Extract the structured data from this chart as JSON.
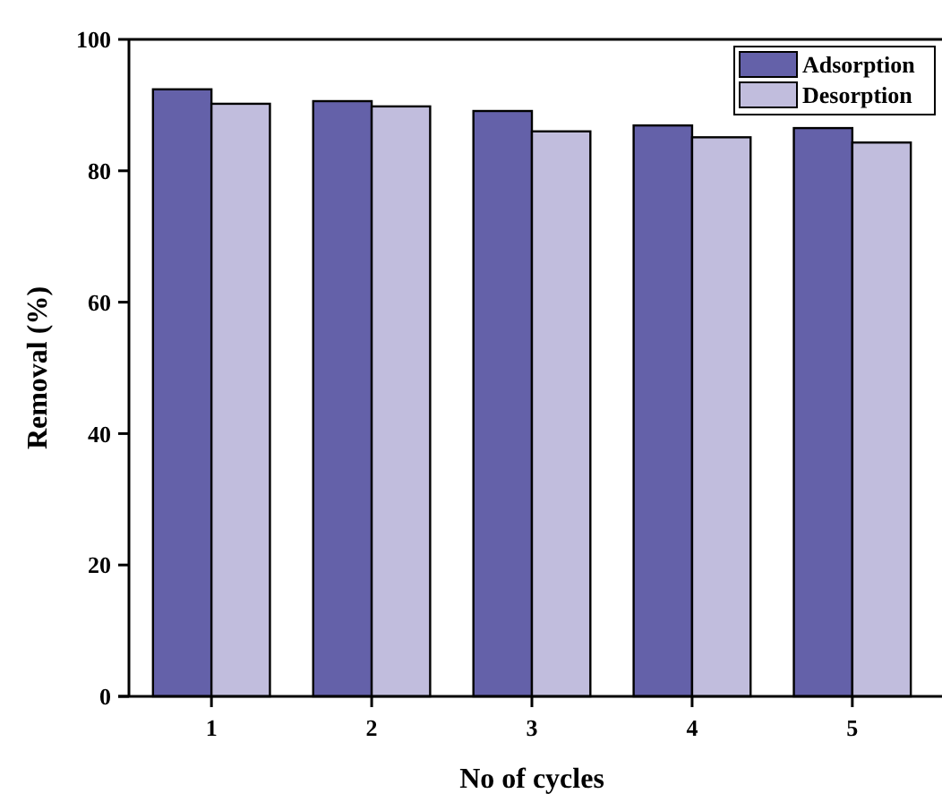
{
  "chart_data": {
    "type": "bar",
    "xlabel": "No of cycles",
    "ylabel": "Removal (%)",
    "categories": [
      "1",
      "2",
      "3",
      "4",
      "5"
    ],
    "series": [
      {
        "name": "Adsorption",
        "color": "#6461a9",
        "values": [
          92.4,
          90.6,
          89.1,
          86.9,
          86.5
        ]
      },
      {
        "name": "Desorption",
        "color": "#c1bddd",
        "values": [
          90.2,
          89.8,
          86.0,
          85.1,
          84.3
        ]
      }
    ],
    "ylim": [
      0,
      100
    ],
    "yticks": [
      0,
      20,
      40,
      60,
      80,
      100
    ],
    "legend": "top right",
    "grid": false
  }
}
